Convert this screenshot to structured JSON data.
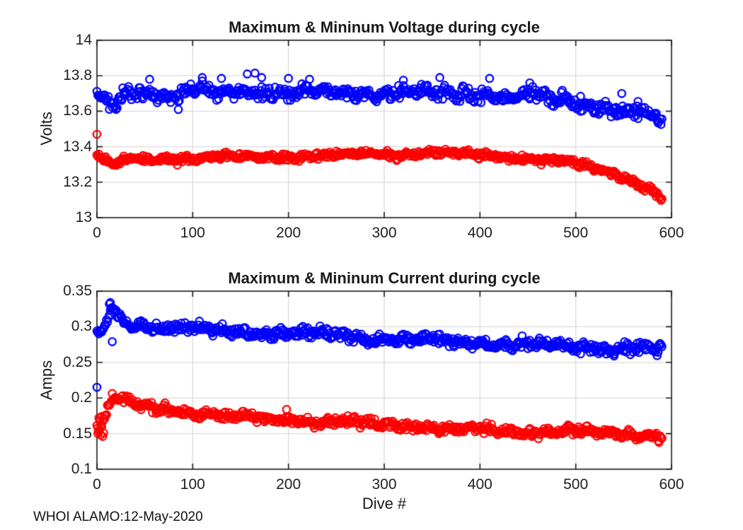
{
  "figure": {
    "footer": "WHOI ALAMO:12-May-2020",
    "background_color": "#ffffff",
    "axis_color": "#1a1a1a",
    "grid_color": "#dcdcdc",
    "text_color": "#1a1a1a"
  },
  "chart_data": [
    {
      "type": "scatter",
      "title": "Maximum & Mininum Voltage during cycle",
      "xlabel": "",
      "ylabel": "Volts",
      "xlim": [
        0,
        600
      ],
      "ylim": [
        13,
        14
      ],
      "xticks": [
        0,
        100,
        200,
        300,
        400,
        500,
        600
      ],
      "xtick_labels": [
        "0",
        "100",
        "200",
        "300",
        "400",
        "500",
        "600"
      ],
      "yticks": [
        13,
        13.2,
        13.4,
        13.6,
        13.8,
        14
      ],
      "ytick_labels": [
        "13",
        "13.2",
        "13.4",
        "13.6",
        "13.8",
        "14"
      ],
      "grid": true,
      "marker": "o",
      "series": [
        {
          "name": "maximum-voltage",
          "color": "#0000ff",
          "dive_start": 0,
          "dive_end": 590,
          "spread": 0.026,
          "trend": [
            [
              0,
              13.715
            ],
            [
              6,
              13.665
            ],
            [
              14,
              13.645
            ],
            [
              22,
              13.655
            ],
            [
              30,
              13.7
            ],
            [
              42,
              13.715
            ],
            [
              55,
              13.705
            ],
            [
              70,
              13.695
            ],
            [
              85,
              13.675
            ],
            [
              100,
              13.715
            ],
            [
              115,
              13.705
            ],
            [
              130,
              13.7
            ],
            [
              145,
              13.72
            ],
            [
              160,
              13.725
            ],
            [
              175,
              13.705
            ],
            [
              190,
              13.71
            ],
            [
              205,
              13.685
            ],
            [
              220,
              13.705
            ],
            [
              235,
              13.695
            ],
            [
              250,
              13.7
            ],
            [
              270,
              13.705
            ],
            [
              290,
              13.7
            ],
            [
              310,
              13.71
            ],
            [
              330,
              13.7
            ],
            [
              350,
              13.705
            ],
            [
              370,
              13.7
            ],
            [
              390,
              13.705
            ],
            [
              410,
              13.7
            ],
            [
              430,
              13.68
            ],
            [
              445,
              13.69
            ],
            [
              460,
              13.695
            ],
            [
              475,
              13.665
            ],
            [
              490,
              13.665
            ],
            [
              505,
              13.65
            ],
            [
              520,
              13.635
            ],
            [
              535,
              13.625
            ],
            [
              550,
              13.6
            ],
            [
              565,
              13.585
            ],
            [
              577,
              13.57
            ],
            [
              585,
              13.55
            ],
            [
              590,
              13.54
            ]
          ],
          "outliers": [
            [
              55,
              13.78
            ],
            [
              85,
              13.61
            ],
            [
              110,
              13.79
            ],
            [
              130,
              13.785
            ],
            [
              157,
              13.81
            ],
            [
              165,
              13.815
            ],
            [
              172,
              13.79
            ],
            [
              200,
              13.785
            ],
            [
              222,
              13.78
            ],
            [
              320,
              13.775
            ],
            [
              358,
              13.79
            ],
            [
              410,
              13.785
            ],
            [
              452,
              13.76
            ],
            [
              505,
              13.6
            ],
            [
              548,
              13.7
            ],
            [
              565,
              13.655
            ]
          ]
        },
        {
          "name": "minimum-voltage",
          "color": "#ff0000",
          "dive_start": 0,
          "dive_end": 590,
          "spread": 0.013,
          "trend": [
            [
              0,
              13.35
            ],
            [
              8,
              13.32
            ],
            [
              16,
              13.295
            ],
            [
              24,
              13.315
            ],
            [
              35,
              13.33
            ],
            [
              60,
              13.335
            ],
            [
              90,
              13.335
            ],
            [
              120,
              13.34
            ],
            [
              150,
              13.34
            ],
            [
              180,
              13.345
            ],
            [
              210,
              13.345
            ],
            [
              240,
              13.35
            ],
            [
              270,
              13.355
            ],
            [
              300,
              13.36
            ],
            [
              330,
              13.36
            ],
            [
              355,
              13.368
            ],
            [
              380,
              13.358
            ],
            [
              400,
              13.352
            ],
            [
              420,
              13.347
            ],
            [
              440,
              13.34
            ],
            [
              460,
              13.33
            ],
            [
              480,
              13.317
            ],
            [
              495,
              13.305
            ],
            [
              510,
              13.29
            ],
            [
              525,
              13.272
            ],
            [
              540,
              13.25
            ],
            [
              555,
              13.222
            ],
            [
              567,
              13.19
            ],
            [
              577,
              13.162
            ],
            [
              585,
              13.13
            ],
            [
              590,
              13.105
            ]
          ],
          "outliers": [
            [
              0,
              13.47
            ]
          ]
        }
      ]
    },
    {
      "type": "scatter",
      "title": "Maximum & Mininum Current during cycle",
      "xlabel": "Dive #",
      "ylabel": "Amps",
      "xlim": [
        0,
        600
      ],
      "ylim": [
        0.1,
        0.35
      ],
      "xticks": [
        0,
        100,
        200,
        300,
        400,
        500,
        600
      ],
      "xtick_labels": [
        "0",
        "100",
        "200",
        "300",
        "400",
        "500",
        "600"
      ],
      "yticks": [
        0.1,
        0.15,
        0.2,
        0.25,
        0.3,
        0.35
      ],
      "ytick_labels": [
        "0.1",
        "0.15",
        "0.2",
        "0.25",
        "0.3",
        "0.35"
      ],
      "grid": true,
      "marker": "o",
      "series": [
        {
          "name": "maximum-current",
          "color": "#0000ff",
          "dive_start": 0,
          "dive_end": 590,
          "spread": 0.005,
          "trend": [
            [
              0,
              0.288
            ],
            [
              4,
              0.291
            ],
            [
              8,
              0.297
            ],
            [
              12,
              0.316
            ],
            [
              15,
              0.328
            ],
            [
              18,
              0.326
            ],
            [
              21,
              0.315
            ],
            [
              25,
              0.308
            ],
            [
              30,
              0.305
            ],
            [
              40,
              0.304
            ],
            [
              55,
              0.302
            ],
            [
              70,
              0.3
            ],
            [
              90,
              0.298
            ],
            [
              110,
              0.296
            ],
            [
              130,
              0.294
            ],
            [
              150,
              0.293
            ],
            [
              170,
              0.292
            ],
            [
              190,
              0.291
            ],
            [
              210,
              0.29
            ],
            [
              230,
              0.289
            ],
            [
              250,
              0.288
            ],
            [
              270,
              0.287
            ],
            [
              290,
              0.285
            ],
            [
              310,
              0.284
            ],
            [
              330,
              0.282
            ],
            [
              350,
              0.281
            ],
            [
              370,
              0.279
            ],
            [
              390,
              0.278
            ],
            [
              410,
              0.277
            ],
            [
              430,
              0.276
            ],
            [
              450,
              0.275
            ],
            [
              470,
              0.274
            ],
            [
              490,
              0.273
            ],
            [
              510,
              0.272
            ],
            [
              530,
              0.27
            ],
            [
              550,
              0.269
            ],
            [
              570,
              0.268
            ],
            [
              590,
              0.267
            ]
          ],
          "outliers": [
            [
              0,
              0.215
            ],
            [
              13,
              0.332
            ],
            [
              14,
              0.334
            ],
            [
              16,
              0.279
            ],
            [
              505,
              0.262
            ],
            [
              540,
              0.259
            ],
            [
              585,
              0.2595
            ]
          ]
        },
        {
          "name": "minimum-current",
          "color": "#ff0000",
          "dive_start": 0,
          "dive_end": 590,
          "spread": 0.0042,
          "trend": [
            [
              0,
              0.162
            ],
            [
              3,
              0.155
            ],
            [
              6,
              0.165
            ],
            [
              9,
              0.172
            ],
            [
              12,
              0.188
            ],
            [
              16,
              0.199
            ],
            [
              20,
              0.203
            ],
            [
              24,
              0.199
            ],
            [
              28,
              0.195
            ],
            [
              34,
              0.192
            ],
            [
              40,
              0.19
            ],
            [
              50,
              0.188
            ],
            [
              60,
              0.186
            ],
            [
              72,
              0.184
            ],
            [
              85,
              0.182
            ],
            [
              100,
              0.179
            ],
            [
              115,
              0.177
            ],
            [
              130,
              0.175
            ],
            [
              145,
              0.174
            ],
            [
              160,
              0.172
            ],
            [
              180,
              0.171
            ],
            [
              200,
              0.17
            ],
            [
              220,
              0.168
            ],
            [
              240,
              0.167
            ],
            [
              260,
              0.166
            ],
            [
              280,
              0.164
            ],
            [
              300,
              0.163
            ],
            [
              320,
              0.162
            ],
            [
              340,
              0.161
            ],
            [
              352,
              0.16
            ],
            [
              360,
              0.156
            ],
            [
              380,
              0.155
            ],
            [
              400,
              0.1545
            ],
            [
              420,
              0.154
            ],
            [
              440,
              0.154
            ],
            [
              460,
              0.1535
            ],
            [
              480,
              0.153
            ],
            [
              500,
              0.1525
            ],
            [
              520,
              0.152
            ],
            [
              540,
              0.1515
            ],
            [
              560,
              0.15
            ],
            [
              575,
              0.149
            ],
            [
              590,
              0.148
            ]
          ],
          "outliers": [
            [
              1,
              0.15
            ],
            [
              2,
              0.172
            ],
            [
              3,
              0.168
            ],
            [
              4,
              0.148
            ],
            [
              5,
              0.174
            ],
            [
              6,
              0.146
            ],
            [
              7,
              0.151
            ],
            [
              8,
              0.175
            ],
            [
              198,
              0.184
            ]
          ]
        }
      ]
    }
  ]
}
